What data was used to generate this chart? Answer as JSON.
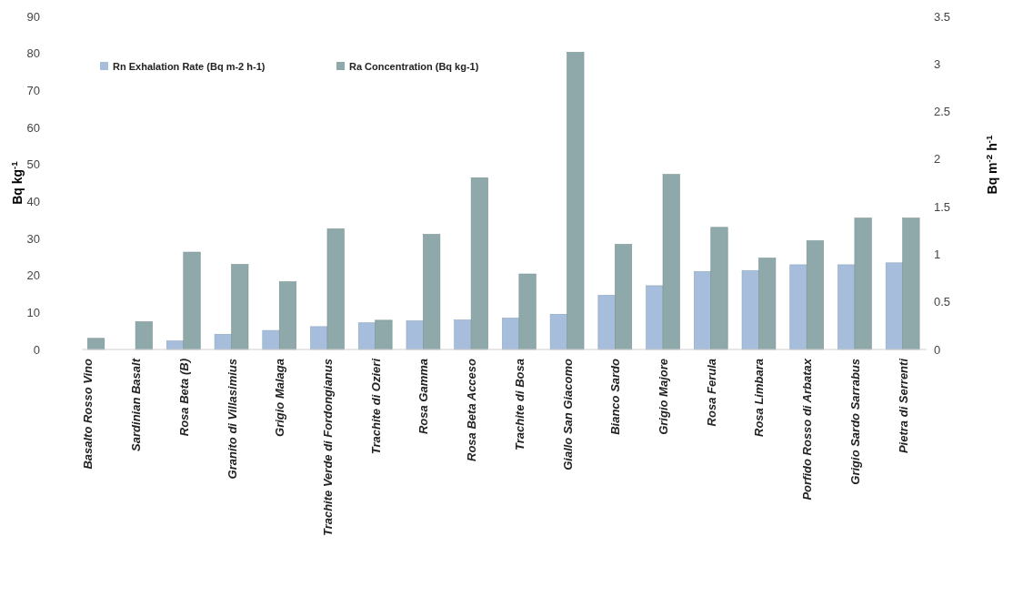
{
  "chart_data": {
    "type": "bar",
    "xlabel": null,
    "ylabel": "Bq kg$^{-1}$",
    "y2label": "Bq m$^{-2}$ h$^{-1}$",
    "categories": [
      "Basalto Rosso Vino",
      "Sardinian Basalt",
      "Rosa Beta (B)",
      "Granito di Villasimius",
      "Grigio Malaga",
      "Trachite Verde di Fordongianus",
      "Trachite di Ozieri",
      "Rosa Gamma",
      "Rosa Beta Acceso",
      "Trachite di Bosa",
      "Giallo San Giacomo",
      "Bianco  Sardo",
      "Grigio Majore",
      "Rosa Ferula",
      "Rosa Limbara",
      "Porfido Rosso di Arbatax",
      "Grigio Sardo Sarrabus",
      "Pietra di Serrenti"
    ],
    "series": [
      {
        "name": "Rn Exhalation Rate (Bq m-2 h-1)",
        "color": "#a6bedb",
        "axis": "y2",
        "values": [
          null,
          null,
          0.09,
          0.16,
          0.2,
          0.24,
          0.28,
          0.3,
          0.31,
          0.33,
          0.37,
          0.57,
          0.67,
          0.82,
          0.83,
          0.89,
          0.89,
          0.91
        ]
      },
      {
        "name": "Ra Concentration (Bq kg-1)",
        "color": "#8fa9aa",
        "values": [
          3.0,
          7.5,
          26.3,
          23,
          18.3,
          32.6,
          7.9,
          31.1,
          46.4,
          20.4,
          80.3,
          28.4,
          47.3,
          33.0,
          24.7,
          29.4,
          35.5,
          35.5
        ]
      }
    ],
    "ylim": [
      0,
      90
    ],
    "yticks": [
      0,
      10,
      20,
      30,
      40,
      50,
      60,
      70,
      80,
      90
    ],
    "y2lim": [
      0,
      3.5
    ],
    "y2ticks": [
      0,
      0.5,
      1,
      1.5,
      2,
      2.5,
      3,
      3.5
    ],
    "legend": "top"
  }
}
